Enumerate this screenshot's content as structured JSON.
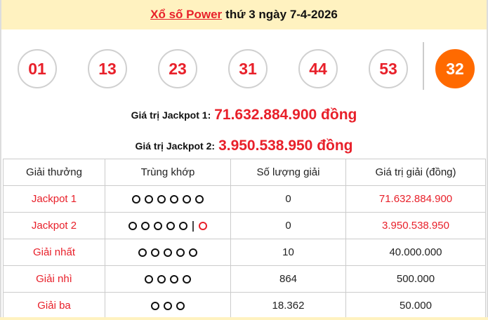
{
  "header": {
    "game_link": "Xổ số Power",
    "date_text": "thứ 3 ngày 7-4-2026"
  },
  "balls": [
    "01",
    "13",
    "23",
    "31",
    "44",
    "53"
  ],
  "special_ball": "32",
  "jackpot1": {
    "label": "Giá trị Jackpot 1:",
    "value": "71.632.884.900 đồng"
  },
  "jackpot2": {
    "label": "Giá trị Jackpot 2:",
    "value": "3.950.538.950 đồng"
  },
  "table": {
    "headers": [
      "Giải thưởng",
      "Trùng khớp",
      "Số lượng giải",
      "Giá trị giải (đồng)"
    ],
    "rows": [
      {
        "prize": "Jackpot 1",
        "match": 6,
        "special": false,
        "count": "0",
        "value": "71.632.884.900",
        "value_red": true
      },
      {
        "prize": "Jackpot 2",
        "match": 5,
        "special": true,
        "count": "0",
        "value": "3.950.538.950",
        "value_red": true
      },
      {
        "prize": "Giải nhất",
        "match": 5,
        "special": false,
        "count": "10",
        "value": "40.000.000",
        "value_red": false
      },
      {
        "prize": "Giải nhì",
        "match": 4,
        "special": false,
        "count": "864",
        "value": "500.000",
        "value_red": false
      },
      {
        "prize": "Giải ba",
        "match": 3,
        "special": false,
        "count": "18.362",
        "value": "50.000",
        "value_red": false
      }
    ]
  },
  "colors": {
    "accent": "#e8202a",
    "special": "#ff6a00",
    "header_bg": "#fff2c0"
  }
}
